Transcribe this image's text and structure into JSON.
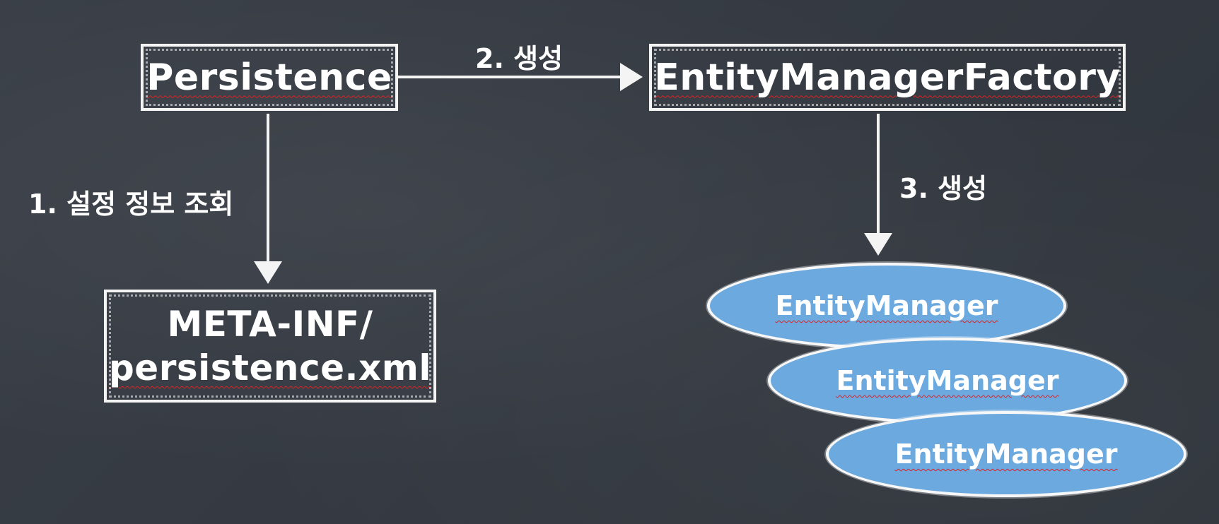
{
  "diagram": {
    "nodes": {
      "persistence": "Persistence",
      "entity_manager_factory": "EntityManagerFactory",
      "meta_inf_line1": "META-INF/",
      "meta_inf_line2": "persistence.xml",
      "entity_managers": [
        "EntityManager",
        "EntityManager",
        "EntityManager"
      ]
    },
    "edges": {
      "step1_label": "1. 설정 정보 조회",
      "step2_label": "2. 생성",
      "step3_label": "3. 생성"
    },
    "colors": {
      "board": "#353a42",
      "chalk": "#f4f4f4",
      "ellipse_fill": "#6ba9df",
      "underline": "#dd2222"
    }
  }
}
